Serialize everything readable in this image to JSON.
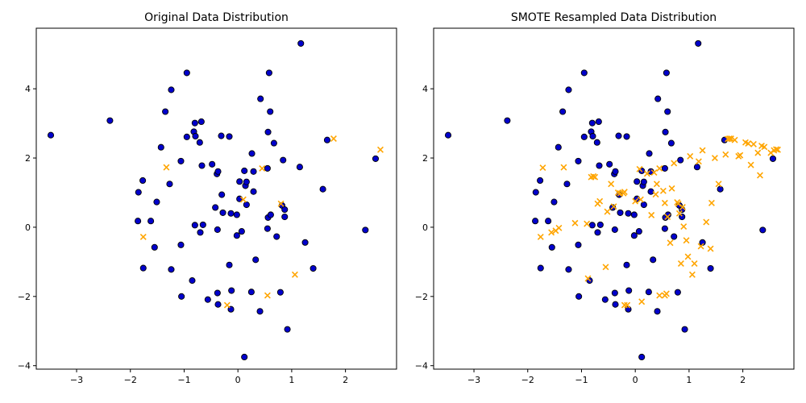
{
  "chart_data": [
    {
      "type": "scatter",
      "title": "Original Data Distribution",
      "xlabel": "",
      "ylabel": "",
      "xlim": [
        -3.75,
        2.95
      ],
      "ylim": [
        -4.1,
        5.75
      ],
      "xticks": [
        -3,
        -2,
        -1,
        0,
        1,
        2
      ],
      "yticks": [
        -4,
        -2,
        0,
        2,
        4
      ],
      "grid": false,
      "series": [
        {
          "marker": "circle",
          "color": "#0000cc",
          "edgecolor": "#000000",
          "points": [
            [
              -3.48,
              2.66
            ],
            [
              -2.38,
              3.08
            ],
            [
              -1.85,
              1.01
            ],
            [
              -1.86,
              0.18
            ],
            [
              -1.77,
              1.35
            ],
            [
              -1.76,
              -1.18
            ],
            [
              -1.62,
              0.18
            ],
            [
              -1.55,
              -0.58
            ],
            [
              -1.51,
              0.73
            ],
            [
              -1.43,
              2.31
            ],
            [
              -1.35,
              3.34
            ],
            [
              -1.27,
              1.25
            ],
            [
              -1.24,
              3.97
            ],
            [
              -1.24,
              -1.22
            ],
            [
              -1.06,
              1.91
            ],
            [
              -1.06,
              -0.51
            ],
            [
              -1.05,
              -2.0
            ],
            [
              -0.95,
              4.46
            ],
            [
              -0.95,
              2.61
            ],
            [
              -0.85,
              -1.54
            ],
            [
              -0.82,
              2.76
            ],
            [
              -0.8,
              3.01
            ],
            [
              -0.79,
              2.63
            ],
            [
              -0.8,
              0.06
            ],
            [
              -0.71,
              2.45
            ],
            [
              -0.7,
              -0.15
            ],
            [
              -0.68,
              3.05
            ],
            [
              -0.67,
              1.78
            ],
            [
              -0.65,
              0.07
            ],
            [
              -0.56,
              -2.09
            ],
            [
              -0.48,
              1.82
            ],
            [
              -0.42,
              0.57
            ],
            [
              -0.39,
              1.54
            ],
            [
              -0.37,
              1.61
            ],
            [
              -0.38,
              -0.07
            ],
            [
              -0.38,
              -1.9
            ],
            [
              -0.37,
              -2.23
            ],
            [
              -0.31,
              2.64
            ],
            [
              -0.3,
              0.94
            ],
            [
              -0.28,
              0.42
            ],
            [
              -0.16,
              2.62
            ],
            [
              -0.16,
              -1.09
            ],
            [
              -0.12,
              -1.83
            ],
            [
              -0.13,
              -2.37
            ],
            [
              -0.13,
              0.4
            ],
            [
              -0.02,
              0.36
            ],
            [
              -0.02,
              -0.24
            ],
            [
              0.03,
              1.32
            ],
            [
              0.03,
              0.82
            ],
            [
              0.07,
              -0.12
            ],
            [
              0.12,
              1.63
            ],
            [
              0.14,
              1.2
            ],
            [
              0.16,
              1.31
            ],
            [
              0.16,
              0.65
            ],
            [
              0.12,
              -3.75
            ],
            [
              0.26,
              2.13
            ],
            [
              0.25,
              -1.87
            ],
            [
              0.29,
              1.61
            ],
            [
              0.29,
              1.03
            ],
            [
              0.33,
              -0.94
            ],
            [
              0.42,
              3.71
            ],
            [
              0.41,
              -2.43
            ],
            [
              0.56,
              2.75
            ],
            [
              0.58,
              4.46
            ],
            [
              0.6,
              3.34
            ],
            [
              0.55,
              1.7
            ],
            [
              0.56,
              0.28
            ],
            [
              0.55,
              -0.04
            ],
            [
              0.61,
              0.36
            ],
            [
              0.67,
              2.43
            ],
            [
              0.72,
              -0.27
            ],
            [
              0.79,
              -1.88
            ],
            [
              0.84,
              1.94
            ],
            [
              0.82,
              0.63
            ],
            [
              0.87,
              0.51
            ],
            [
              0.87,
              0.3
            ],
            [
              0.92,
              -2.95
            ],
            [
              1.15,
              1.74
            ],
            [
              1.17,
              5.31
            ],
            [
              1.25,
              -0.44
            ],
            [
              1.4,
              -1.19
            ],
            [
              1.58,
              1.1
            ],
            [
              1.66,
              2.52
            ],
            [
              2.37,
              -0.08
            ],
            [
              2.56,
              1.98
            ]
          ]
        },
        {
          "marker": "x",
          "color": "#ffa500",
          "points": [
            [
              -1.76,
              -0.28
            ],
            [
              -1.33,
              1.73
            ],
            [
              -0.2,
              -2.25
            ],
            [
              0.1,
              0.8
            ],
            [
              0.45,
              1.7
            ],
            [
              0.55,
              -1.97
            ],
            [
              0.8,
              0.68
            ],
            [
              1.06,
              -1.37
            ],
            [
              1.78,
              2.56
            ],
            [
              2.65,
              2.24
            ]
          ]
        }
      ]
    },
    {
      "type": "scatter",
      "title": "SMOTE Resampled Data Distribution",
      "xlabel": "",
      "ylabel": "",
      "xlim": [
        -3.75,
        2.95
      ],
      "ylim": [
        -4.1,
        5.75
      ],
      "xticks": [
        -3,
        -2,
        -1,
        0,
        1,
        2
      ],
      "yticks": [
        -4,
        -2,
        0,
        2,
        4
      ],
      "grid": false,
      "series": [
        {
          "marker": "circle",
          "color": "#0000cc",
          "edgecolor": "#000000",
          "points": [
            [
              -3.48,
              2.66
            ],
            [
              -2.38,
              3.08
            ],
            [
              -1.85,
              1.01
            ],
            [
              -1.86,
              0.18
            ],
            [
              -1.77,
              1.35
            ],
            [
              -1.76,
              -1.18
            ],
            [
              -1.62,
              0.18
            ],
            [
              -1.55,
              -0.58
            ],
            [
              -1.51,
              0.73
            ],
            [
              -1.43,
              2.31
            ],
            [
              -1.35,
              3.34
            ],
            [
              -1.27,
              1.25
            ],
            [
              -1.24,
              3.97
            ],
            [
              -1.24,
              -1.22
            ],
            [
              -1.06,
              1.91
            ],
            [
              -1.06,
              -0.51
            ],
            [
              -1.05,
              -2.0
            ],
            [
              -0.95,
              4.46
            ],
            [
              -0.95,
              2.61
            ],
            [
              -0.85,
              -1.54
            ],
            [
              -0.82,
              2.76
            ],
            [
              -0.8,
              3.01
            ],
            [
              -0.79,
              2.63
            ],
            [
              -0.8,
              0.06
            ],
            [
              -0.71,
              2.45
            ],
            [
              -0.7,
              -0.15
            ],
            [
              -0.68,
              3.05
            ],
            [
              -0.67,
              1.78
            ],
            [
              -0.65,
              0.07
            ],
            [
              -0.56,
              -2.09
            ],
            [
              -0.48,
              1.82
            ],
            [
              -0.42,
              0.57
            ],
            [
              -0.39,
              1.54
            ],
            [
              -0.37,
              1.61
            ],
            [
              -0.38,
              -0.07
            ],
            [
              -0.38,
              -1.9
            ],
            [
              -0.37,
              -2.23
            ],
            [
              -0.31,
              2.64
            ],
            [
              -0.3,
              0.94
            ],
            [
              -0.28,
              0.42
            ],
            [
              -0.16,
              2.62
            ],
            [
              -0.16,
              -1.09
            ],
            [
              -0.12,
              -1.83
            ],
            [
              -0.13,
              -2.37
            ],
            [
              -0.13,
              0.4
            ],
            [
              -0.02,
              0.36
            ],
            [
              -0.02,
              -0.24
            ],
            [
              0.03,
              1.32
            ],
            [
              0.03,
              0.82
            ],
            [
              0.07,
              -0.12
            ],
            [
              0.12,
              1.63
            ],
            [
              0.14,
              1.2
            ],
            [
              0.16,
              1.31
            ],
            [
              0.16,
              0.65
            ],
            [
              0.12,
              -3.75
            ],
            [
              0.26,
              2.13
            ],
            [
              0.25,
              -1.87
            ],
            [
              0.29,
              1.61
            ],
            [
              0.29,
              1.03
            ],
            [
              0.33,
              -0.94
            ],
            [
              0.42,
              3.71
            ],
            [
              0.41,
              -2.43
            ],
            [
              0.56,
              2.75
            ],
            [
              0.58,
              4.46
            ],
            [
              0.6,
              3.34
            ],
            [
              0.55,
              1.7
            ],
            [
              0.56,
              0.28
            ],
            [
              0.55,
              -0.04
            ],
            [
              0.61,
              0.36
            ],
            [
              0.67,
              2.43
            ],
            [
              0.72,
              -0.27
            ],
            [
              0.79,
              -1.88
            ],
            [
              0.84,
              1.94
            ],
            [
              0.82,
              0.63
            ],
            [
              0.87,
              0.51
            ],
            [
              0.87,
              0.3
            ],
            [
              0.92,
              -2.95
            ],
            [
              1.15,
              1.74
            ],
            [
              1.17,
              5.31
            ],
            [
              1.25,
              -0.44
            ],
            [
              1.4,
              -1.19
            ],
            [
              1.58,
              1.1
            ],
            [
              1.66,
              2.52
            ],
            [
              2.37,
              -0.08
            ],
            [
              2.56,
              1.98
            ]
          ]
        },
        {
          "marker": "x",
          "color": "#ffa500",
          "points": [
            [
              -1.76,
              -0.28
            ],
            [
              -1.33,
              1.73
            ],
            [
              -0.2,
              -2.25
            ],
            [
              0.1,
              0.8
            ],
            [
              0.45,
              1.7
            ],
            [
              0.55,
              -1.97
            ],
            [
              0.8,
              0.68
            ],
            [
              1.06,
              -1.37
            ],
            [
              1.78,
              2.56
            ],
            [
              2.65,
              2.24
            ],
            [
              -1.72,
              1.72
            ],
            [
              -1.56,
              -0.15
            ],
            [
              -1.48,
              -0.1
            ],
            [
              -1.42,
              -0.02
            ],
            [
              -1.12,
              0.12
            ],
            [
              -0.9,
              0.1
            ],
            [
              -0.88,
              -1.48
            ],
            [
              -0.82,
              1.45
            ],
            [
              -0.78,
              1.47
            ],
            [
              -0.75,
              1.45
            ],
            [
              -0.7,
              0.68
            ],
            [
              -0.66,
              0.75
            ],
            [
              -0.55,
              -1.15
            ],
            [
              -0.52,
              0.45
            ],
            [
              -0.45,
              1.25
            ],
            [
              -0.4,
              0.6
            ],
            [
              -0.32,
              1.0
            ],
            [
              -0.28,
              0.98
            ],
            [
              -0.22,
              0.98
            ],
            [
              -0.2,
              1.02
            ],
            [
              -0.15,
              -2.25
            ],
            [
              0.0,
              0.75
            ],
            [
              0.08,
              1.68
            ],
            [
              0.12,
              -2.15
            ],
            [
              0.22,
              1.55
            ],
            [
              0.3,
              0.35
            ],
            [
              0.35,
              1.58
            ],
            [
              0.38,
              0.95
            ],
            [
              0.4,
              1.25
            ],
            [
              0.45,
              -1.97
            ],
            [
              0.52,
              1.05
            ],
            [
              0.55,
              0.7
            ],
            [
              0.58,
              -1.92
            ],
            [
              0.6,
              0.3
            ],
            [
              0.65,
              -0.45
            ],
            [
              0.68,
              1.12
            ],
            [
              0.72,
              1.85
            ],
            [
              0.78,
              0.72
            ],
            [
              0.82,
              0.4
            ],
            [
              0.85,
              -1.05
            ],
            [
              0.88,
              0.58
            ],
            [
              0.9,
              0.02
            ],
            [
              0.95,
              -0.38
            ],
            [
              0.98,
              -0.85
            ],
            [
              1.02,
              2.05
            ],
            [
              1.1,
              -1.05
            ],
            [
              1.18,
              1.9
            ],
            [
              1.22,
              -0.55
            ],
            [
              1.25,
              2.22
            ],
            [
              1.32,
              0.15
            ],
            [
              1.4,
              -0.62
            ],
            [
              1.42,
              0.7
            ],
            [
              1.48,
              2.0
            ],
            [
              1.55,
              1.25
            ],
            [
              1.68,
              2.1
            ],
            [
              1.72,
              2.55
            ],
            [
              1.75,
              2.56
            ],
            [
              1.85,
              2.52
            ],
            [
              1.92,
              2.05
            ],
            [
              1.95,
              2.08
            ],
            [
              2.05,
              2.45
            ],
            [
              2.1,
              2.42
            ],
            [
              2.15,
              1.8
            ],
            [
              2.2,
              2.4
            ],
            [
              2.28,
              2.15
            ],
            [
              2.32,
              1.5
            ],
            [
              2.35,
              2.35
            ],
            [
              2.4,
              2.32
            ],
            [
              2.52,
              2.15
            ],
            [
              2.58,
              2.22
            ],
            [
              2.62,
              2.25
            ]
          ]
        }
      ]
    }
  ]
}
